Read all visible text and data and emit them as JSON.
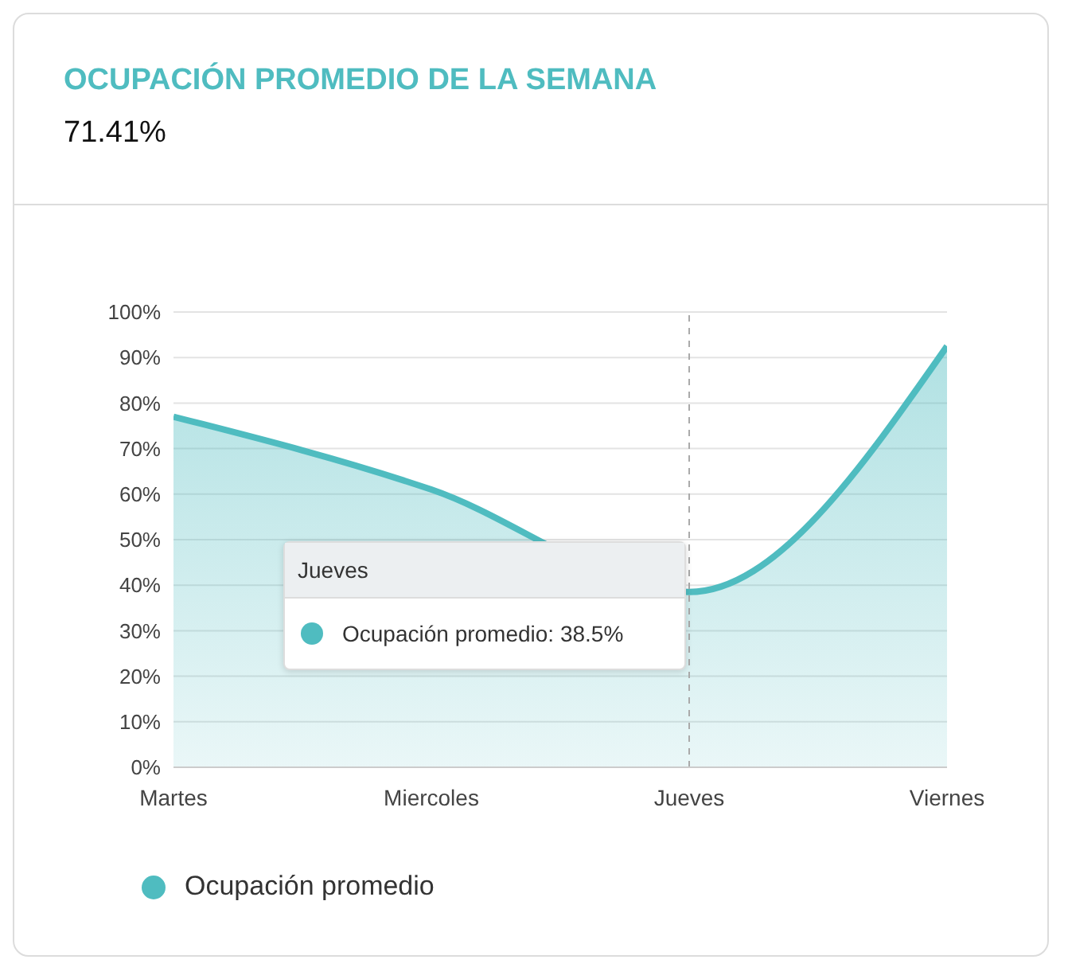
{
  "chart_data": {
    "type": "area",
    "title": "OCUPACIÓN PROMEDIO DE LA SEMANA",
    "subtitle": "71.41%",
    "categories": [
      "Martes",
      "Miercoles",
      "Jueves",
      "Viernes"
    ],
    "series": [
      {
        "name": "Ocupación promedio",
        "color": "#4fbcc0",
        "values": [
          77,
          61,
          38.5,
          92.5
        ]
      }
    ],
    "ylim": [
      0,
      100
    ],
    "yticks": [
      {
        "value": 0,
        "label": "0%"
      },
      {
        "value": 10,
        "label": "10%"
      },
      {
        "value": 20,
        "label": "20%"
      },
      {
        "value": 30,
        "label": "30%"
      },
      {
        "value": 40,
        "label": "40%"
      },
      {
        "value": 50,
        "label": "50%"
      },
      {
        "value": 60,
        "label": "60%"
      },
      {
        "value": 70,
        "label": "70%"
      },
      {
        "value": 80,
        "label": "80%"
      },
      {
        "value": 90,
        "label": "90%"
      },
      {
        "value": 100,
        "label": "100%"
      }
    ],
    "grid": "y",
    "legend": "bottom left",
    "marker": "none",
    "ref_lines": [
      {
        "axis": "x",
        "value": "Jueves",
        "color": "#aaaaaa",
        "line_style": "dashed"
      }
    ],
    "annotations": [
      "Jueves",
      "Ocupación promedio: 38.5%"
    ]
  }
}
